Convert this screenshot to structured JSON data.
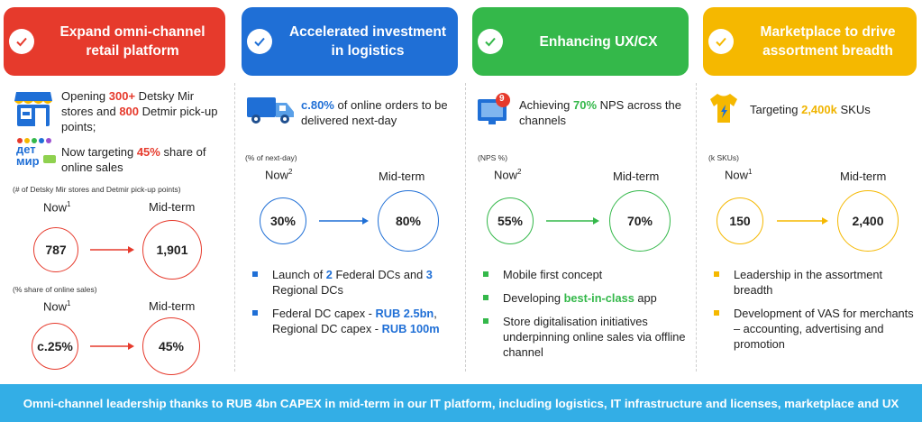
{
  "columns": [
    {
      "title": "Expand omni-channel retail platform",
      "color": "#e63a2c",
      "intro1_parts": [
        "Opening ",
        "300+",
        " Detsky Mir stores and ",
        "800",
        " Detmir pick-up points;"
      ],
      "intro2_parts": [
        "Now targeting ",
        "45%",
        " share of online sales"
      ],
      "metric1": {
        "label": "(# of Detsky Mir stores and Detmir pick-up points)",
        "now_label": "Now",
        "now_sup": "1",
        "mid_label": "Mid-term",
        "now_value": "787",
        "mid_value": "1,901"
      },
      "metric2": {
        "label": "(% share of online sales)",
        "now_label": "Now",
        "now_sup": "1",
        "mid_label": "Mid-term",
        "now_value": "c.25%",
        "mid_value": "45%"
      }
    },
    {
      "title": "Accelerated investment in logistics",
      "color": "#1f6fd6",
      "intro_parts": [
        "c.80%",
        " of online orders to be delivered next-day"
      ],
      "metric": {
        "label": "(% of next-day)",
        "now_label": "Now",
        "now_sup": "2",
        "mid_label": "Mid-term",
        "now_value": "30%",
        "mid_value": "80%"
      },
      "bullets": [
        {
          "parts": [
            "Launch of ",
            "2",
            " Federal DCs and ",
            "3",
            " Regional DCs"
          ]
        },
        {
          "parts": [
            "Federal DC capex - ",
            "RUB 2.5bn",
            ", Regional DC capex - ",
            "RUB 100m",
            ""
          ]
        }
      ]
    },
    {
      "title": "Enhancing UX/CX",
      "color": "#34b84a",
      "intro_parts": [
        "Achieving ",
        "70%",
        " NPS across the channels"
      ],
      "metric": {
        "label": "(NPS %)",
        "now_label": "Now",
        "now_sup": "2",
        "mid_label": "Mid-term",
        "now_value": "55%",
        "mid_value": "70%"
      },
      "bullets": [
        {
          "parts": [
            "Mobile first concept",
            "",
            ""
          ]
        },
        {
          "parts": [
            "Developing ",
            "best-in-class",
            " app"
          ]
        },
        {
          "parts": [
            "Store digitalisation initiatives underpinning online sales via offline channel",
            "",
            ""
          ]
        }
      ]
    },
    {
      "title": "Marketplace to drive assortment breadth",
      "color": "#f5b800",
      "intro_parts": [
        "Targeting ",
        "2,400k",
        " SKUs"
      ],
      "metric": {
        "label": "(k SKUs)",
        "now_label": "Now",
        "now_sup": "1",
        "mid_label": "Mid-term",
        "now_value": "150",
        "mid_value": "2,400"
      },
      "bullets": [
        {
          "parts": [
            "Leadership in the assortment breadth"
          ]
        },
        {
          "parts": [
            "Development of VAS for merchants – accounting, advertising and promotion"
          ]
        }
      ]
    }
  ],
  "logo_text": {
    "line1": "дет",
    "line2": "мир"
  },
  "nps_badge": "9",
  "footer": "Omni-channel leadership thanks to RUB 4bn CAPEX in mid-term in our IT platform, including logistics, IT infrastructure and licenses, marketplace and UX"
}
